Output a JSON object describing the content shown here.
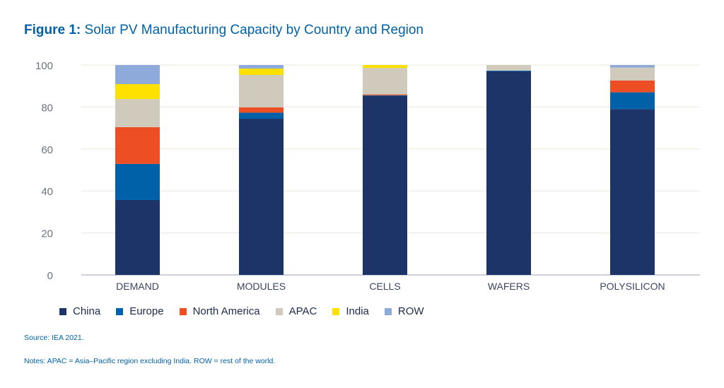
{
  "title": {
    "bold": "Figure 1:",
    "text": "Solar PV Manufacturing Capacity by Country and Region"
  },
  "chart_data": {
    "type": "bar",
    "stacked": true,
    "title": "Figure 1: Solar PV Manufacturing Capacity by Country and Region",
    "categories": [
      "DEMAND",
      "MODULES",
      "CELLS",
      "WAFERS",
      "POLYSILICON"
    ],
    "ylim": [
      0,
      100
    ],
    "yticks": [
      0,
      20,
      40,
      60,
      80,
      100
    ],
    "grid": true,
    "legend_position": "bottom",
    "series": [
      {
        "name": "China",
        "color": "#1d3468",
        "values": [
          35.7,
          74.4,
          85.4,
          97.0,
          79.0
        ]
      },
      {
        "name": "Europe",
        "color": "#0061a8",
        "values": [
          17.2,
          2.9,
          0.2,
          0.3,
          8.0
        ]
      },
      {
        "name": "North America",
        "color": "#ee4e23",
        "values": [
          17.5,
          2.5,
          0.4,
          0,
          5.6
        ]
      },
      {
        "name": "APAC",
        "color": "#d0cabd",
        "values": [
          13.4,
          15.5,
          12.6,
          2.7,
          6.2
        ]
      },
      {
        "name": "India",
        "color": "#ffe100",
        "values": [
          7.1,
          3.0,
          1.4,
          0,
          0
        ]
      },
      {
        "name": "ROW",
        "color": "#8eaadb",
        "values": [
          9.1,
          1.7,
          0,
          0,
          1.2
        ]
      }
    ]
  },
  "source": "Source: IEA 2021.",
  "notes": "Notes: APAC = Asia–Pacific region excluding India. ROW = rest of the world."
}
